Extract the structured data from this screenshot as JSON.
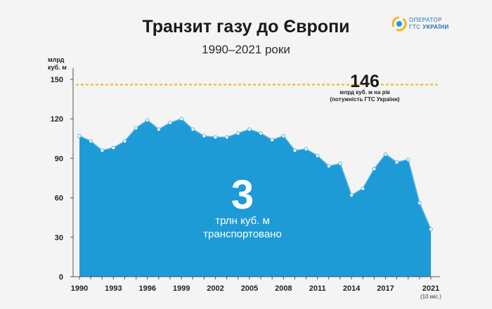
{
  "chart_data": {
    "type": "area",
    "title": "Транзит газу до Європи",
    "subtitle": "1990–2021 роки",
    "ylabel_lines": [
      "млрд",
      "куб. м"
    ],
    "ylim": [
      0,
      150
    ],
    "yticks": [
      0,
      30,
      60,
      90,
      120,
      150
    ],
    "xlim": [
      1990,
      2021
    ],
    "xticks": [
      "1990",
      "1993",
      "1996",
      "1999",
      "2002",
      "2005",
      "2008",
      "2011",
      "2014",
      "2017",
      "2021"
    ],
    "xtick_note": "(10 міс.)",
    "x": [
      1990,
      1991,
      1992,
      1993,
      1994,
      1995,
      1996,
      1997,
      1998,
      1999,
      2000,
      2001,
      2002,
      2003,
      2004,
      2005,
      2006,
      2007,
      2008,
      2009,
      2010,
      2011,
      2012,
      2013,
      2014,
      2015,
      2016,
      2017,
      2018,
      2019,
      2020,
      2021
    ],
    "values": [
      107,
      103,
      96,
      98,
      103,
      113,
      119,
      112,
      117,
      120,
      112,
      107,
      106,
      106,
      109,
      112,
      109,
      104,
      107,
      96,
      97,
      92,
      84,
      86,
      62,
      67,
      82,
      93,
      87,
      89,
      56,
      36
    ],
    "reference_line": {
      "value": 146,
      "label_value": "146",
      "label_line1": "млрд куб. м на рік",
      "label_line2": "(потужність ГТС України)"
    },
    "annotation": {
      "value": "3",
      "line1": "трлн куб. м",
      "line2": "транспортовано"
    },
    "grid": false,
    "colors": {
      "area": "#1e9ad6",
      "line": "#4fb3e6",
      "marker_fill": "#ffffff",
      "reference": "#f2b51b"
    }
  },
  "logo": {
    "line1": "ОПЕРАТОР",
    "line2_a": "ГТС",
    "line2_b": "УКРАЇНИ"
  }
}
